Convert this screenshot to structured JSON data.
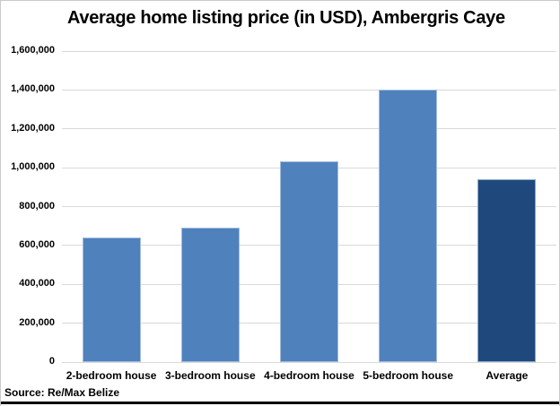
{
  "chart_data": {
    "type": "bar",
    "title": "Average home listing price (in USD), Ambergris Caye",
    "categories": [
      "2-bedroom house",
      "3-bedroom house",
      "4-bedroom house",
      "5-bedroom house",
      "Average"
    ],
    "values": [
      640000,
      690000,
      1035000,
      1400000,
      941250
    ],
    "bar_colors": [
      "#4F81BD",
      "#4F81BD",
      "#4F81BD",
      "#4F81BD",
      "#1F497D"
    ],
    "bar_border_colors": [
      "#A3BCDC",
      "#A3BCDC",
      "#A3BCDC",
      "#A3BCDC",
      "#8FA8C8"
    ],
    "xlabel": "",
    "ylabel": "",
    "ylim": [
      0,
      1600000
    ],
    "ytick_step": 200000,
    "ytick_labels": [
      "0",
      "200,000",
      "400,000",
      "600,000",
      "800,000",
      "1,000,000",
      "1,200,000",
      "1,400,000",
      "1,600,000"
    ],
    "grid": true,
    "legend": false,
    "source": "Source: Re/Max Belize",
    "colors": {
      "bar": "#4F81BD",
      "average_bar": "#1F497D",
      "gridline": "#d9d9d9",
      "title_text": "#000000"
    }
  }
}
